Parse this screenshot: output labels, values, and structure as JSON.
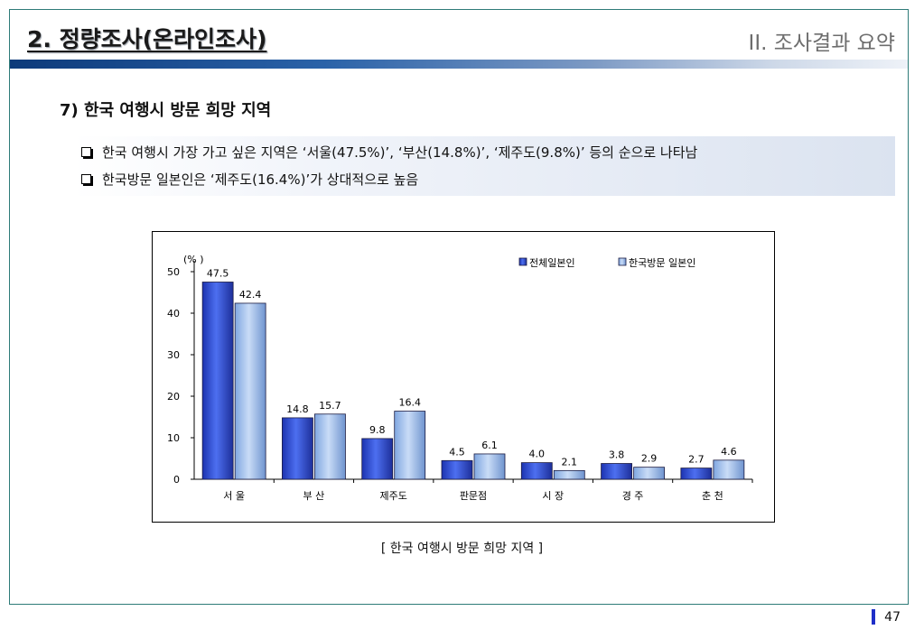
{
  "header": {
    "title": "2. 정량조사(온라인조사)",
    "section": "II. 조사결과 요약"
  },
  "subtitle": "7) 한국 여행시 방문 희망 지역",
  "summary": [
    "한국 여행시 가장 가고 싶은 지역은 ‘서울(47.5%)’, ‘부산(14.8%)’, ‘제주도(9.8%)’ 등의 순으로 나타남",
    "한국방문 일본인은 ‘제주도(16.4%)’가 상대적으로 높음"
  ],
  "chart_data": {
    "type": "bar",
    "title": "",
    "xlabel": "",
    "ylabel": "(% )",
    "ylim": [
      0,
      50
    ],
    "yticks": [
      0,
      10,
      20,
      30,
      40,
      50
    ],
    "grid": false,
    "legend": "top-right",
    "categories": [
      "서 울",
      "부 산",
      "제주도",
      "판문점",
      "시 장",
      "경 주",
      "춘 천"
    ],
    "series": [
      {
        "name": "전체일본인",
        "color": "#2f4fd6",
        "values": [
          47.5,
          14.8,
          9.8,
          4.5,
          4.0,
          3.8,
          2.7
        ]
      },
      {
        "name": "한국방문 일본인",
        "color": "#9fc1ee",
        "values": [
          42.4,
          15.7,
          16.4,
          6.1,
          2.1,
          2.9,
          4.6
        ]
      }
    ]
  },
  "caption": "[ 한국 여행시 방문 희망 지역 ]",
  "page_number": "47"
}
